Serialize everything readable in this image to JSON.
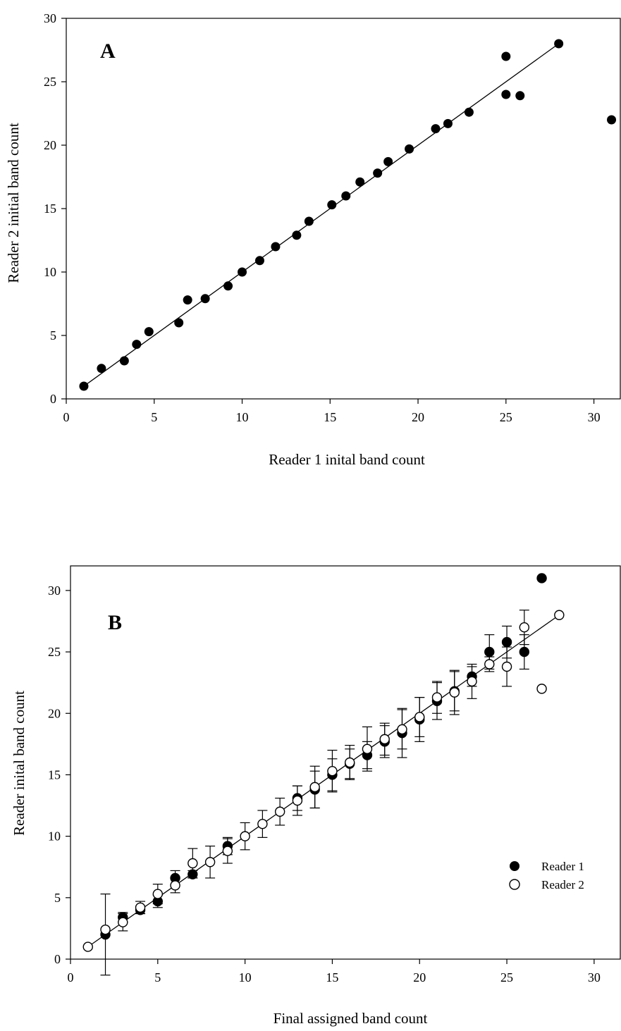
{
  "chart_data": [
    {
      "type": "scatter",
      "panel": "A",
      "xlabel": "Reader 1 inital band count",
      "ylabel": "Reader 2 initial band count",
      "xlim": [
        0,
        31.5
      ],
      "ylim": [
        0,
        30
      ],
      "xticks": [
        0,
        5,
        10,
        15,
        20,
        25,
        30
      ],
      "yticks": [
        0,
        5,
        10,
        15,
        20,
        25,
        30
      ],
      "points": [
        [
          1,
          1
        ],
        [
          2,
          2.4
        ],
        [
          3.3,
          3
        ],
        [
          4,
          4.3
        ],
        [
          4.7,
          5.3
        ],
        [
          6.4,
          6
        ],
        [
          6.9,
          7.8
        ],
        [
          7.9,
          7.9
        ],
        [
          9.2,
          8.9
        ],
        [
          10,
          10
        ],
        [
          11,
          10.9
        ],
        [
          11.9,
          12
        ],
        [
          13.1,
          12.9
        ],
        [
          13.8,
          14
        ],
        [
          15.1,
          15.3
        ],
        [
          15.9,
          16
        ],
        [
          16.7,
          17.1
        ],
        [
          17.7,
          17.8
        ],
        [
          18.3,
          18.7
        ],
        [
          19.5,
          19.7
        ],
        [
          21,
          21.3
        ],
        [
          21.7,
          21.7
        ],
        [
          22.9,
          22.6
        ],
        [
          25,
          27
        ],
        [
          25,
          24
        ],
        [
          25.8,
          23.9
        ],
        [
          28,
          28
        ],
        [
          31,
          22
        ]
      ],
      "fit_line": [
        [
          1,
          1
        ],
        [
          28,
          28
        ]
      ],
      "grid": false
    },
    {
      "type": "scatter",
      "panel": "B",
      "xlabel": "Final assigned band count",
      "ylabel": "Reader inital band count",
      "xlim": [
        0,
        31.5
      ],
      "ylim": [
        0,
        32
      ],
      "xticks": [
        0,
        5,
        10,
        15,
        20,
        25,
        30
      ],
      "yticks": [
        0,
        5,
        10,
        15,
        20,
        25,
        30
      ],
      "legend_position": "bottom-right",
      "series": [
        {
          "name": "Reader 1",
          "marker": "filled-circle",
          "points": [
            {
              "x": 2,
              "y": 2,
              "err": 3.3
            },
            {
              "x": 3,
              "y": 3.4,
              "err": 0.4
            },
            {
              "x": 4,
              "y": 4,
              "err": 0.3
            },
            {
              "x": 5,
              "y": 4.7,
              "err": 0.5
            },
            {
              "x": 6,
              "y": 6.6,
              "err": 0.6
            },
            {
              "x": 7,
              "y": 6.9,
              "err": 0.3
            },
            {
              "x": 9,
              "y": 9.2,
              "err": 0.7
            },
            {
              "x": 13,
              "y": 13.1,
              "err": 1
            },
            {
              "x": 14,
              "y": 13.8,
              "err": 1.5
            },
            {
              "x": 15,
              "y": 15,
              "err": 1.3
            },
            {
              "x": 16,
              "y": 15.9,
              "err": 1.2
            },
            {
              "x": 17,
              "y": 16.6,
              "err": 1.1
            },
            {
              "x": 18,
              "y": 17.7,
              "err": 1.3
            },
            {
              "x": 19,
              "y": 18.4,
              "err": 2
            },
            {
              "x": 20,
              "y": 19.5,
              "err": 1.8
            },
            {
              "x": 21,
              "y": 21,
              "err": 1.5
            },
            {
              "x": 22,
              "y": 21.8,
              "err": 1.6
            },
            {
              "x": 23,
              "y": 23,
              "err": 0.8
            },
            {
              "x": 24,
              "y": 25,
              "err": 1.4
            },
            {
              "x": 25,
              "y": 25.8,
              "err": 1.3
            },
            {
              "x": 26,
              "y": 25,
              "err": 1.4
            },
            {
              "x": 27,
              "y": 31,
              "err": 0
            }
          ]
        },
        {
          "name": "Reader 2",
          "marker": "open-circle",
          "points": [
            {
              "x": 1,
              "y": 1,
              "err": 0
            },
            {
              "x": 2,
              "y": 2.4,
              "err": 0
            },
            {
              "x": 3,
              "y": 3,
              "err": 0.7
            },
            {
              "x": 4,
              "y": 4.2,
              "err": 0.5
            },
            {
              "x": 5,
              "y": 5.3,
              "err": 0.8
            },
            {
              "x": 6,
              "y": 6,
              "err": 0.6
            },
            {
              "x": 7,
              "y": 7.8,
              "err": 1.2
            },
            {
              "x": 8,
              "y": 7.9,
              "err": 1.3
            },
            {
              "x": 9,
              "y": 8.8,
              "err": 1
            },
            {
              "x": 10,
              "y": 10,
              "err": 1.1
            },
            {
              "x": 11,
              "y": 11,
              "err": 1.1
            },
            {
              "x": 12,
              "y": 12,
              "err": 1.1
            },
            {
              "x": 13,
              "y": 12.9,
              "err": 1.2
            },
            {
              "x": 14,
              "y": 14,
              "err": 1.7
            },
            {
              "x": 15,
              "y": 15.3,
              "err": 1.7
            },
            {
              "x": 16,
              "y": 16,
              "err": 1.4
            },
            {
              "x": 17,
              "y": 17.1,
              "err": 1.8
            },
            {
              "x": 18,
              "y": 17.9,
              "err": 1.3
            },
            {
              "x": 19,
              "y": 18.7,
              "err": 1.6
            },
            {
              "x": 20,
              "y": 19.7,
              "err": 1.6
            },
            {
              "x": 21,
              "y": 21.3,
              "err": 1.3
            },
            {
              "x": 22,
              "y": 21.7,
              "err": 1.8
            },
            {
              "x": 23,
              "y": 22.6,
              "err": 1.4
            },
            {
              "x": 24,
              "y": 24,
              "err": 0.6
            },
            {
              "x": 25,
              "y": 23.8,
              "err": 1.6
            },
            {
              "x": 26,
              "y": 27,
              "err": 1.4
            },
            {
              "x": 27,
              "y": 22,
              "err": 0
            },
            {
              "x": 28,
              "y": 28,
              "err": 0
            }
          ]
        }
      ],
      "fit_line": [
        [
          1,
          1
        ],
        [
          28,
          28
        ]
      ],
      "grid": false
    }
  ]
}
